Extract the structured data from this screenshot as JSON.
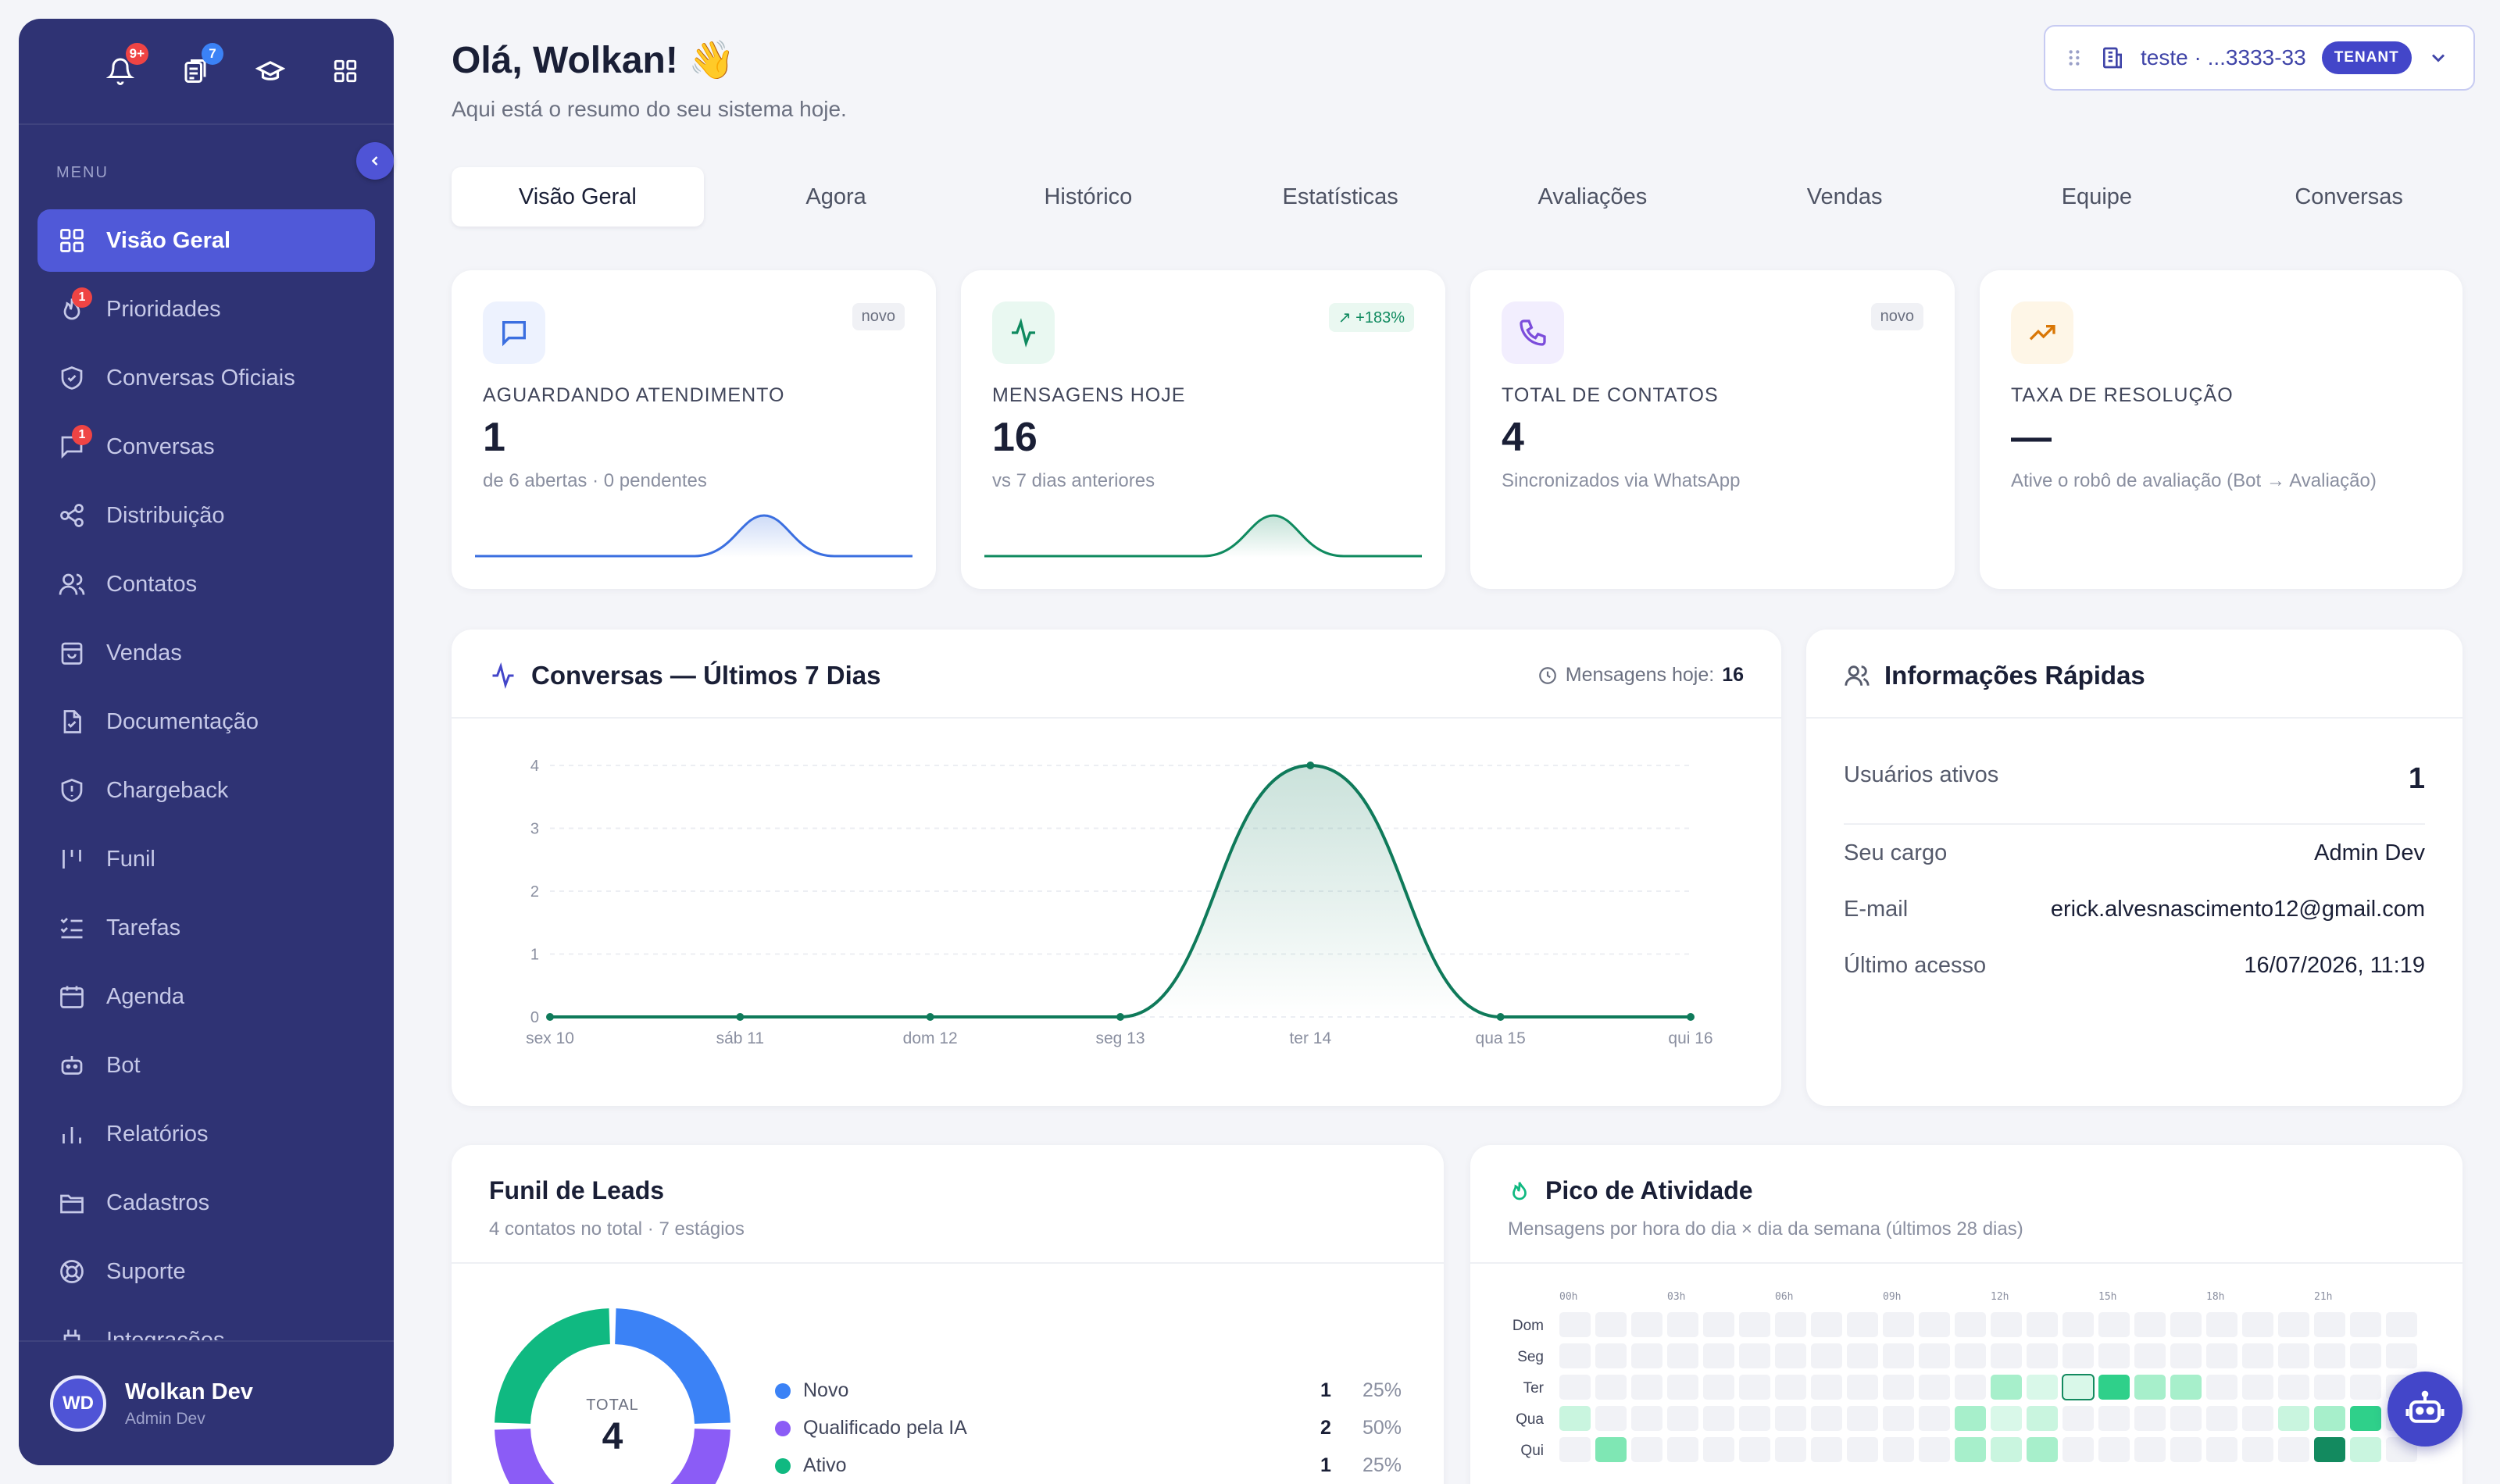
{
  "colors": {
    "sidebar": "#2f3374",
    "active": "#5059d8",
    "accent": "#4346c9",
    "green": "#0f7a5a",
    "blue": "#3b6fe0"
  },
  "topbar": {
    "notifications_badge": "9+",
    "documents_badge": "7",
    "icons": [
      "bell-icon",
      "documents-icon",
      "graduation-cap-icon",
      "grid-icon"
    ]
  },
  "sidebar": {
    "menu_label": "MENU",
    "items": [
      {
        "label": "Visão Geral",
        "icon": "grid-icon",
        "active": true
      },
      {
        "label": "Prioridades",
        "icon": "flame-icon",
        "badge": "1"
      },
      {
        "label": "Conversas Oficiais",
        "icon": "shield-check-icon"
      },
      {
        "label": "Conversas",
        "icon": "chat-icon",
        "badge": "1"
      },
      {
        "label": "Distribuição",
        "icon": "share-icon"
      },
      {
        "label": "Contatos",
        "icon": "users-icon"
      },
      {
        "label": "Vendas",
        "icon": "shopping-bag-icon"
      },
      {
        "label": "Documentação",
        "icon": "document-icon"
      },
      {
        "label": "Chargeback",
        "icon": "shield-alert-icon"
      },
      {
        "label": "Funil",
        "icon": "funnel-icon"
      },
      {
        "label": "Tarefas",
        "icon": "list-check-icon"
      },
      {
        "label": "Agenda",
        "icon": "calendar-icon"
      },
      {
        "label": "Bot",
        "icon": "bot-icon"
      },
      {
        "label": "Relatórios",
        "icon": "bar-chart-icon"
      },
      {
        "label": "Cadastros",
        "icon": "folder-icon"
      },
      {
        "label": "Suporte",
        "icon": "lifebuoy-icon"
      },
      {
        "label": "Integrações",
        "icon": "plug-icon"
      }
    ],
    "user": {
      "initials": "WD",
      "name": "Wolkan Dev",
      "role": "Admin Dev"
    }
  },
  "header": {
    "greeting": "Olá, Wolkan! 👋",
    "subtitle": "Aqui está o resumo do seu sistema hoje.",
    "tenant_label": "teste · ...3333-33",
    "tenant_badge": "TENANT"
  },
  "tabs": [
    "Visão Geral",
    "Agora",
    "Histórico",
    "Estatísticas",
    "Avaliações",
    "Vendas",
    "Equipe",
    "Conversas"
  ],
  "kpis": [
    {
      "tag": "novo",
      "label": "AGUARDANDO ATENDIMENTO",
      "value": "1",
      "sub": "de 6 abertas · 0 pendentes",
      "icon": "chat-icon"
    },
    {
      "tag": "+183%",
      "label": "MENSAGENS HOJE",
      "value": "16",
      "sub": "vs 7 dias anteriores",
      "icon": "activity-icon"
    },
    {
      "tag": "novo",
      "label": "TOTAL DE CONTATOS",
      "value": "4",
      "sub": "Sincronizados via WhatsApp",
      "icon": "phone-icon"
    },
    {
      "tag": "",
      "label": "TAXA DE RESOLUÇÃO",
      "value": "—",
      "sub": "Ative o robô de avaliação (Bot → Avaliação)",
      "icon": "trending-up-icon"
    }
  ],
  "conversations_card": {
    "title": "Conversas — Últimos 7 Dias",
    "today_label": "Mensagens hoje:",
    "today_value": "16"
  },
  "chart_data": {
    "type": "area",
    "categories": [
      "sex 10",
      "sáb 11",
      "dom 12",
      "seg 13",
      "ter 14",
      "qua 15",
      "qui 16"
    ],
    "values": [
      0,
      0,
      0,
      0,
      4,
      0,
      0
    ],
    "yticks": [
      "0",
      "1",
      "2",
      "3",
      "4"
    ],
    "ylim": [
      0,
      4
    ],
    "grid": true
  },
  "info_card": {
    "title": "Informações Rápidas",
    "active_users_label": "Usuários ativos",
    "active_users_value": "1",
    "rows": [
      {
        "label": "Seu cargo",
        "value": "Admin Dev"
      },
      {
        "label": "E-mail",
        "value": "erick.alvesnascimento12@gmail.com"
      },
      {
        "label": "Último acesso",
        "value": "16/07/2026, 11:19"
      }
    ]
  },
  "funnel_card": {
    "title": "Funil de Leads",
    "subtitle": "4 contatos no total · 7 estágios",
    "total_label": "TOTAL",
    "total_value": "4",
    "stages": [
      {
        "name": "Novo",
        "count": "1",
        "pct": "25%",
        "color": "#3b82f6"
      },
      {
        "name": "Qualificado pela IA",
        "count": "2",
        "pct": "50%",
        "color": "#8b5cf6"
      },
      {
        "name": "Ativo",
        "count": "1",
        "pct": "25%",
        "color": "#10b981"
      }
    ]
  },
  "activity_card": {
    "title": "Pico de Atividade",
    "subtitle": "Mensagens por hora do dia × dia da semana (últimos 28 dias)",
    "hour_labels": [
      "00h",
      "03h",
      "06h",
      "09h",
      "12h",
      "15h",
      "18h",
      "21h"
    ],
    "day_labels": [
      "Dom",
      "Seg",
      "Ter",
      "Qua",
      "Qui"
    ]
  }
}
